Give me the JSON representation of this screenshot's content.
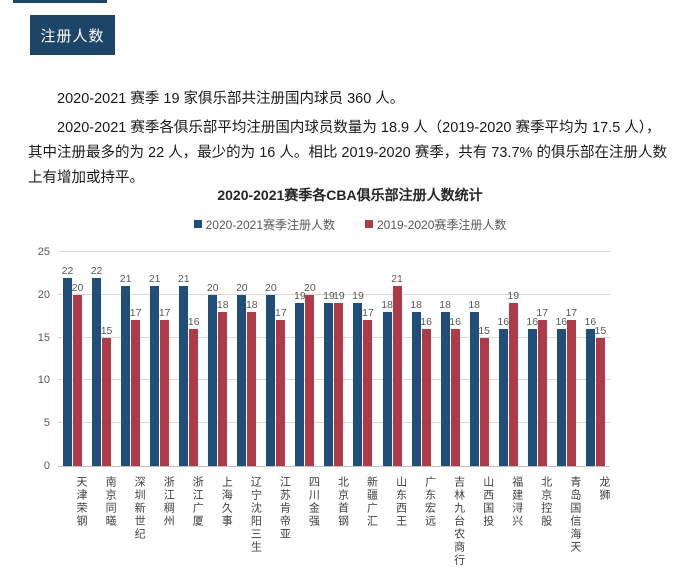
{
  "theme": {
    "navy": "#1c4567",
    "bar_blue": "#1f4e79",
    "bar_red": "#ae3b47"
  },
  "page": {
    "section_badge": "注册人数",
    "paragraphs": [
      "2020-2021 赛季 19 家俱乐部共注册国内球员 360 人。",
      "2020-2021 赛季各俱乐部平均注册国内球员数量为 18.9 人（2019-2020 赛季平均为 17.5 人），其中注册最多的为 22 人，最少的为 16 人。相比 2019-2020 赛季，共有 73.7% 的俱乐部在注册人数上有增加或持平。"
    ]
  },
  "chart_data": {
    "type": "bar",
    "title": "2020-2021赛季各CBA俱乐部注册人数统计",
    "categories": [
      "天津荣钢",
      "南京同曦",
      "深圳新世纪",
      "浙江稠州",
      "浙江广厦",
      "上海久事",
      "辽宁沈阳三生",
      "江苏肯帝亚",
      "四川金强",
      "北京首钢",
      "新疆广汇",
      "山东西王",
      "广东宏远",
      "吉林九台农商行",
      "山西国投",
      "福建浔兴",
      "北京控股",
      "青岛国信海天",
      "龙狮"
    ],
    "series": [
      {
        "name": "2020-2021赛季注册人数",
        "color": "#1f4e79",
        "values": [
          22,
          22,
          21,
          21,
          21,
          20,
          20,
          20,
          19,
          19,
          19,
          18,
          18,
          18,
          18,
          16,
          16,
          16,
          16
        ]
      },
      {
        "name": "2019-2020赛季注册人数",
        "color": "#ae3b47",
        "values": [
          20,
          15,
          17,
          17,
          16,
          18,
          18,
          17,
          20,
          19,
          17,
          21,
          16,
          16,
          15,
          19,
          17,
          17,
          15
        ]
      }
    ],
    "ylim": [
      0,
      25
    ],
    "ytick_step": 5,
    "yticks": [
      "0",
      "5",
      "10",
      "15",
      "20",
      "25"
    ],
    "grid": true,
    "legend_position": "top",
    "data_labels": true
  }
}
